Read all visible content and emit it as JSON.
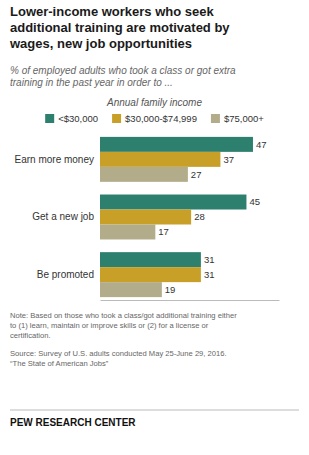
{
  "chart_data": {
    "type": "bar",
    "orientation": "horizontal",
    "title": "Lower-income workers who seek\nadditional training are motivated by\nwages, new job opportunities",
    "subtitle": "% of employed adults who took a class or got extra\ntraining in the past year in order to ...",
    "legend_title": "Annual family income",
    "legend": "top",
    "categories": [
      "Earn more money",
      "Get a new job",
      "Be promoted"
    ],
    "series": [
      {
        "name": "<$30,000",
        "color": "#2d7f6e",
        "values": [
          47,
          45,
          31
        ]
      },
      {
        "name": "$30,000-$74,999",
        "color": "#c8a028",
        "values": [
          37,
          28,
          31
        ]
      },
      {
        "name": "$75,000+",
        "color": "#b2ac8a",
        "values": [
          27,
          17,
          19
        ]
      }
    ],
    "xlim": [
      0,
      55
    ],
    "tick_labels": false,
    "grid": false,
    "data_labels": true,
    "annotations": [
      "Note: Based on those who took a class/got additional training either\nto (1)  learn, maintain or improve skills or (2) for a license or\ncertification.",
      "Source: Survey of U.S. adults conducted May 25-June 29, 2016.\n“The State of American Jobs”"
    ],
    "footer": "PEW RESEARCH CENTER"
  }
}
